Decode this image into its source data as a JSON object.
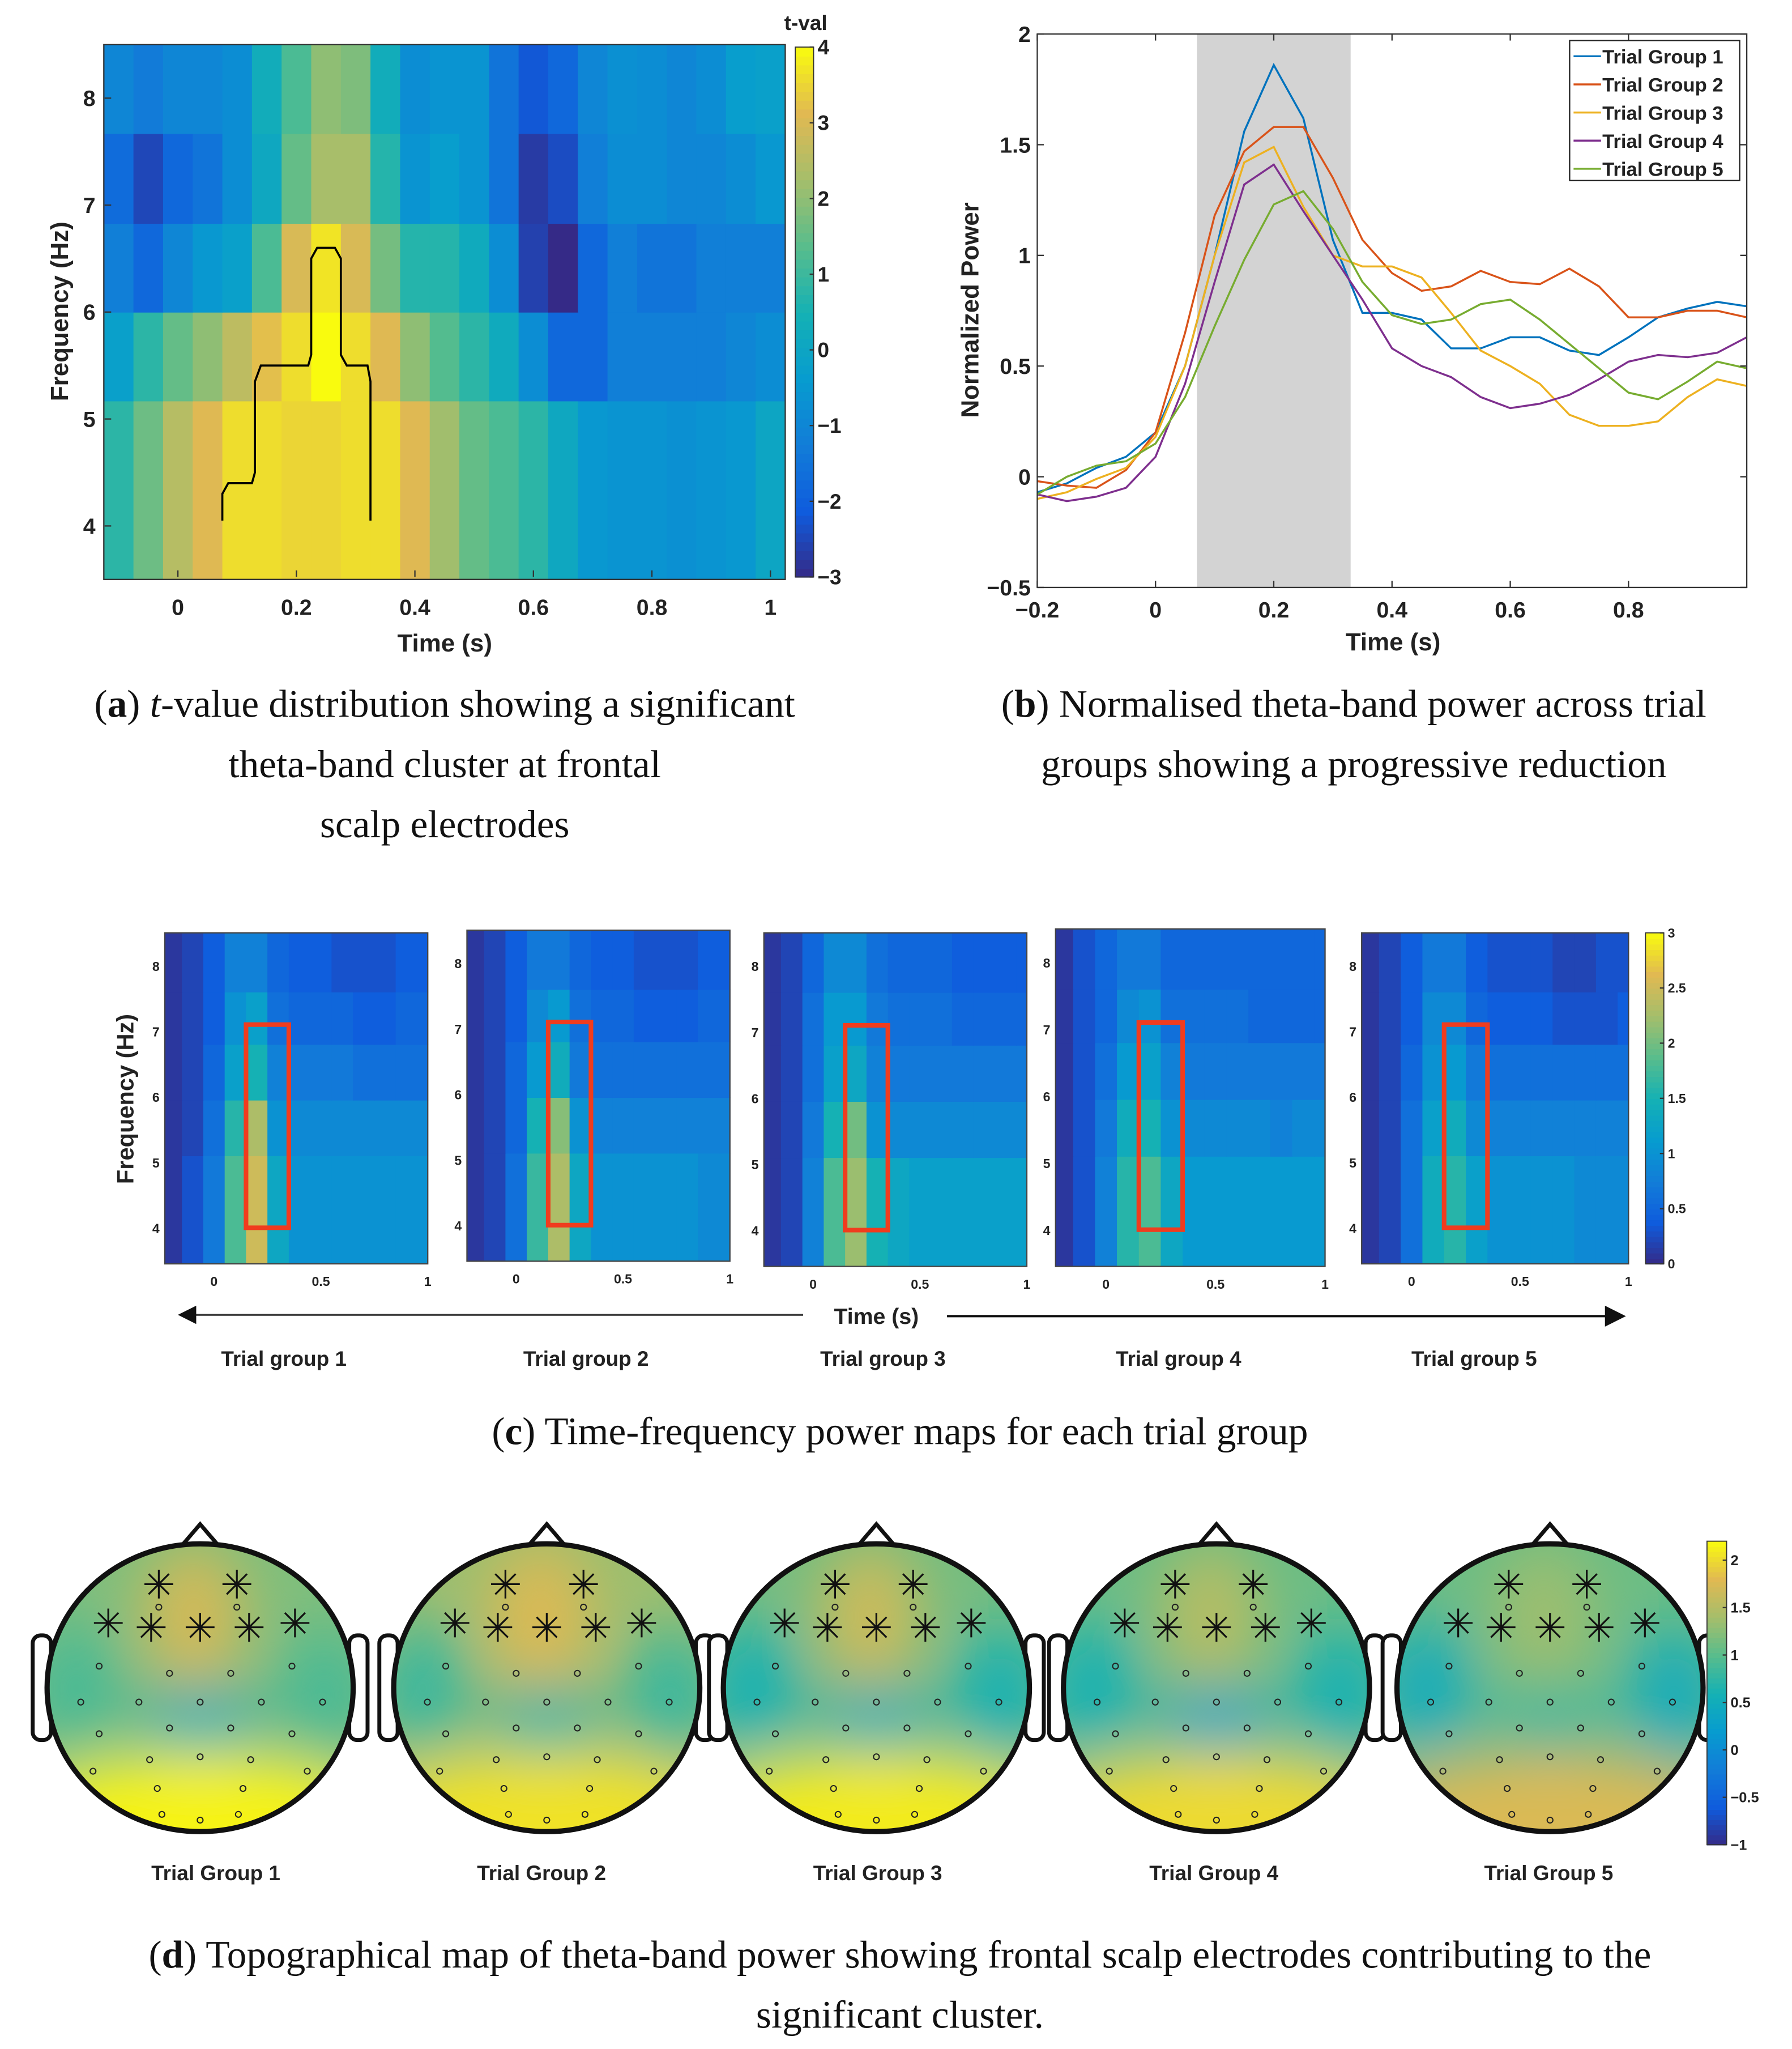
{
  "colors": {
    "series": [
      "#0072bd",
      "#d95319",
      "#edb120",
      "#7e2f8e",
      "#77ac30"
    ],
    "shade": "#d3d3d3",
    "roi_box": "#f03c1e",
    "contour": "#000000"
  },
  "chart_data": [
    {
      "id": "a",
      "type": "heatmap",
      "colorbar_title": "t-val",
      "xlabel": "Time (s)",
      "ylabel": "Frequency (Hz)",
      "xlim": [
        -0.125,
        1.025
      ],
      "ylim": [
        3.5,
        8.5
      ],
      "x_ticks": [
        0,
        0.2,
        0.4,
        0.6,
        0.8,
        1
      ],
      "x_tick_labels": [
        "0",
        "0.2",
        "0.4",
        "0.6",
        "0.8",
        "1"
      ],
      "y_ticks": [
        4,
        5,
        6,
        7,
        8
      ],
      "y_tick_labels": [
        "4",
        "5",
        "6",
        "7",
        "8"
      ],
      "clim": [
        -3,
        4
      ],
      "colorbar_ticks": [
        4,
        3,
        2,
        1,
        0,
        -1,
        -2,
        -3
      ],
      "colorbar_tick_labels": [
        "4",
        "3",
        "2",
        "1",
        "0",
        "−1",
        "−2",
        "−3"
      ],
      "time_start": -0.125,
      "time_step": 0.05,
      "row_edges_hz": [
        3.5,
        5.17,
        6.0,
        6.83,
        7.67,
        8.5
      ],
      "values_bottom_to_top": [
        [
          0.8,
          1.6,
          2.5,
          3.1,
          3.6,
          3.6,
          3.5,
          3.5,
          3.6,
          3.6,
          3.1,
          2.2,
          1.5,
          1.2,
          0.8,
          0.1,
          -0.5,
          -0.6,
          -0.6,
          -0.7,
          -0.6,
          -0.5,
          0.0
        ],
        [
          -0.2,
          0.8,
          1.5,
          2.0,
          2.6,
          3.2,
          3.6,
          4.0,
          3.6,
          3.1,
          2.0,
          1.3,
          0.8,
          0.2,
          -0.8,
          -1.8,
          -1.8,
          -1.2,
          -1.2,
          -1.2,
          -1.2,
          -1.0,
          -0.8
        ],
        [
          -1.2,
          -1.8,
          -1.0,
          -0.5,
          -0.2,
          1.2,
          3.0,
          3.7,
          3.0,
          1.7,
          0.7,
          0.7,
          0.2,
          -0.8,
          -2.6,
          -3.0,
          -1.8,
          -1.2,
          -1.5,
          -1.5,
          -1.2,
          -1.2,
          -1.2
        ],
        [
          -1.7,
          -2.5,
          -1.8,
          -1.5,
          -0.8,
          0.1,
          1.5,
          2.3,
          2.3,
          0.7,
          -0.6,
          -0.3,
          -0.6,
          -1.5,
          -2.7,
          -2.4,
          -1.2,
          -0.8,
          -0.8,
          -1.0,
          -1.0,
          -0.8,
          -0.5
        ],
        [
          -1.0,
          -1.3,
          -1.0,
          -1.0,
          -0.8,
          0.3,
          1.2,
          2.0,
          1.8,
          0.3,
          -0.8,
          -0.6,
          -0.6,
          -1.5,
          -2.2,
          -1.8,
          -1.0,
          -0.7,
          -0.8,
          -1.0,
          -0.8,
          -0.3,
          -0.2
        ]
      ],
      "cluster_contour": [
        [
          0.075,
          4.05
        ],
        [
          0.075,
          4.3
        ],
        [
          0.085,
          4.4
        ],
        [
          0.125,
          4.4
        ],
        [
          0.13,
          4.5
        ],
        [
          0.13,
          5.35
        ],
        [
          0.14,
          5.5
        ],
        [
          0.22,
          5.5
        ],
        [
          0.225,
          5.6
        ],
        [
          0.225,
          6.5
        ],
        [
          0.235,
          6.6
        ],
        [
          0.265,
          6.6
        ],
        [
          0.275,
          6.5
        ],
        [
          0.275,
          5.6
        ],
        [
          0.285,
          5.5
        ],
        [
          0.32,
          5.5
        ],
        [
          0.325,
          5.35
        ],
        [
          0.325,
          4.05
        ]
      ]
    },
    {
      "id": "b",
      "type": "line",
      "xlabel": "Time (s)",
      "ylabel": "Normalized Power",
      "xlim": [
        -0.2,
        1.0
      ],
      "ylim": [
        -0.5,
        2
      ],
      "x_ticks": [
        -0.2,
        0,
        0.2,
        0.4,
        0.6,
        0.8
      ],
      "x_tick_labels": [
        "−0.2",
        "0",
        "0.2",
        "0.4",
        "0.6",
        "0.8"
      ],
      "y_ticks": [
        -0.5,
        0,
        0.5,
        1,
        1.5,
        2
      ],
      "y_tick_labels": [
        "−0.5",
        "0",
        "0.5",
        "1",
        "1.5",
        "2"
      ],
      "shaded_window": [
        0.07,
        0.33
      ],
      "legend_position": "top-right",
      "x": [
        -0.2,
        -0.15,
        -0.1,
        -0.05,
        0,
        0.05,
        0.1,
        0.15,
        0.2,
        0.25,
        0.3,
        0.35,
        0.4,
        0.45,
        0.5,
        0.55,
        0.6,
        0.65,
        0.7,
        0.75,
        0.8,
        0.85,
        0.9,
        0.95,
        1.0
      ],
      "series": [
        {
          "name": "Trial Group 1",
          "values": [
            -0.07,
            -0.03,
            0.04,
            0.09,
            0.2,
            0.5,
            1.0,
            1.56,
            1.86,
            1.62,
            1.07,
            0.74,
            0.74,
            0.71,
            0.58,
            0.58,
            0.63,
            0.63,
            0.57,
            0.55,
            0.63,
            0.72,
            0.76,
            0.79,
            0.77
          ]
        },
        {
          "name": "Trial Group 2",
          "values": [
            -0.02,
            -0.04,
            -0.05,
            0.03,
            0.2,
            0.65,
            1.18,
            1.47,
            1.58,
            1.58,
            1.35,
            1.07,
            0.92,
            0.84,
            0.86,
            0.93,
            0.88,
            0.87,
            0.94,
            0.86,
            0.72,
            0.72,
            0.75,
            0.75,
            0.72
          ]
        },
        {
          "name": "Trial Group 3",
          "values": [
            -0.1,
            -0.07,
            -0.01,
            0.04,
            0.18,
            0.5,
            1.0,
            1.42,
            1.49,
            1.22,
            1.0,
            0.95,
            0.95,
            0.9,
            0.74,
            0.57,
            0.5,
            0.42,
            0.28,
            0.23,
            0.23,
            0.25,
            0.36,
            0.44,
            0.41
          ]
        },
        {
          "name": "Trial Group 4",
          "values": [
            -0.08,
            -0.11,
            -0.09,
            -0.05,
            0.09,
            0.42,
            0.88,
            1.32,
            1.41,
            1.2,
            1.0,
            0.8,
            0.58,
            0.5,
            0.45,
            0.36,
            0.31,
            0.33,
            0.37,
            0.44,
            0.52,
            0.55,
            0.54,
            0.56,
            0.63
          ]
        },
        {
          "name": "Trial Group 5",
          "values": [
            -0.08,
            0.0,
            0.05,
            0.07,
            0.15,
            0.36,
            0.68,
            0.98,
            1.23,
            1.29,
            1.12,
            0.88,
            0.73,
            0.69,
            0.71,
            0.78,
            0.8,
            0.71,
            0.6,
            0.49,
            0.38,
            0.35,
            0.43,
            0.52,
            0.49
          ]
        }
      ]
    },
    {
      "id": "c",
      "type": "heatmap",
      "ylabel": "Frequency (Hz)",
      "xlabel": "Time (s)",
      "xlim": [
        -0.23,
        1.0
      ],
      "ylim": [
        3.45,
        8.5
      ],
      "x_ticks": [
        0,
        0.5,
        1
      ],
      "x_tick_labels": [
        "0",
        "0.5",
        "1"
      ],
      "y_ticks": [
        4,
        5,
        6,
        7,
        8
      ],
      "y_tick_labels": [
        "4",
        "5",
        "6",
        "7",
        "8"
      ],
      "clim": [
        0,
        3
      ],
      "colorbar_ticks": [
        3,
        2.5,
        2,
        1.5,
        1,
        0.5,
        0
      ],
      "colorbar_tick_labels": [
        "3",
        "2.5",
        "2",
        "1.5",
        "1",
        "0.5",
        "0"
      ],
      "roi_box": {
        "time": [
          0.15,
          0.35
        ],
        "freq": [
          4.0,
          7.1
        ]
      },
      "time_centers": [
        -0.2,
        -0.1,
        0,
        0.1,
        0.2,
        0.3,
        0.4,
        0.5,
        0.6,
        0.7,
        0.8,
        0.9,
        1.0
      ],
      "row_edges_hz": [
        3.45,
        5.1,
        5.95,
        6.8,
        7.6,
        8.5
      ],
      "groups": [
        {
          "name": "Trial group 1",
          "values_bottom_to_top": [
            [
              0.1,
              0.3,
              0.7,
              1.8,
              2.5,
              1.3,
              1.0,
              1.0,
              1.0,
              1.0,
              1.0,
              1.0,
              1.0
            ],
            [
              0.1,
              0.2,
              0.6,
              1.6,
              2.3,
              1.0,
              0.9,
              0.9,
              0.9,
              0.9,
              0.9,
              0.9,
              0.9
            ],
            [
              0.1,
              0.2,
              0.5,
              1.2,
              1.5,
              0.8,
              0.7,
              0.7,
              0.7,
              0.6,
              0.6,
              0.6,
              0.6
            ],
            [
              0.1,
              0.2,
              0.4,
              1.0,
              1.2,
              0.6,
              0.5,
              0.5,
              0.5,
              0.4,
              0.4,
              0.5,
              0.5
            ],
            [
              0.1,
              0.2,
              0.4,
              0.8,
              0.8,
              0.5,
              0.4,
              0.4,
              0.3,
              0.3,
              0.3,
              0.4,
              0.4
            ]
          ]
        },
        {
          "name": "Trial group 2",
          "values_bottom_to_top": [
            [
              0.1,
              0.2,
              0.6,
              1.7,
              2.3,
              1.3,
              1.0,
              1.0,
              1.0,
              1.0,
              1.0,
              0.9,
              0.9
            ],
            [
              0.1,
              0.2,
              0.5,
              1.5,
              2.1,
              1.0,
              0.8,
              0.8,
              0.8,
              0.8,
              0.8,
              0.8,
              0.8
            ],
            [
              0.1,
              0.2,
              0.5,
              1.1,
              1.4,
              0.7,
              0.6,
              0.6,
              0.6,
              0.6,
              0.6,
              0.6,
              0.6
            ],
            [
              0.1,
              0.2,
              0.4,
              0.9,
              1.1,
              0.6,
              0.5,
              0.5,
              0.4,
              0.4,
              0.4,
              0.5,
              0.5
            ],
            [
              0.1,
              0.2,
              0.4,
              0.7,
              0.7,
              0.5,
              0.4,
              0.4,
              0.3,
              0.3,
              0.3,
              0.4,
              0.4
            ]
          ]
        },
        {
          "name": "Trial group 3",
          "values_bottom_to_top": [
            [
              0.1,
              0.2,
              0.8,
              1.8,
              2.2,
              1.5,
              1.3,
              1.2,
              1.2,
              1.2,
              1.2,
              1.2,
              1.2
            ],
            [
              0.1,
              0.2,
              0.7,
              1.5,
              2.0,
              1.0,
              0.9,
              0.9,
              0.9,
              0.9,
              0.9,
              0.9,
              0.9
            ],
            [
              0.1,
              0.2,
              0.6,
              1.2,
              1.3,
              0.8,
              0.7,
              0.7,
              0.7,
              0.7,
              0.7,
              0.7,
              0.7
            ],
            [
              0.1,
              0.2,
              0.6,
              1.1,
              1.1,
              0.7,
              0.6,
              0.6,
              0.6,
              0.5,
              0.5,
              0.5,
              0.5
            ],
            [
              0.1,
              0.2,
              0.5,
              0.9,
              0.9,
              0.6,
              0.5,
              0.5,
              0.5,
              0.4,
              0.4,
              0.4,
              0.4
            ]
          ]
        },
        {
          "name": "Trial group 4",
          "values_bottom_to_top": [
            [
              0.1,
              0.3,
              0.8,
              1.6,
              1.8,
              1.3,
              1.1,
              1.1,
              1.1,
              1.1,
              1.1,
              1.1,
              1.1
            ],
            [
              0.1,
              0.3,
              0.7,
              1.4,
              1.5,
              1.0,
              0.9,
              0.9,
              0.9,
              0.9,
              0.8,
              0.9,
              0.9
            ],
            [
              0.1,
              0.3,
              0.6,
              1.1,
              1.2,
              0.8,
              0.7,
              0.7,
              0.7,
              0.7,
              0.7,
              0.7,
              0.7
            ],
            [
              0.1,
              0.3,
              0.5,
              0.9,
              1.0,
              0.6,
              0.6,
              0.6,
              0.6,
              0.5,
              0.5,
              0.5,
              0.5
            ],
            [
              0.1,
              0.3,
              0.5,
              0.7,
              0.7,
              0.5,
              0.5,
              0.5,
              0.5,
              0.5,
              0.5,
              0.5,
              0.5
            ]
          ]
        },
        {
          "name": "Trial group 5",
          "values_bottom_to_top": [
            [
              0.1,
              0.2,
              0.6,
              1.4,
              1.6,
              1.2,
              1.0,
              1.0,
              1.0,
              1.0,
              0.9,
              0.9,
              0.9
            ],
            [
              0.1,
              0.2,
              0.6,
              1.2,
              1.4,
              0.9,
              0.8,
              0.8,
              0.8,
              0.8,
              0.8,
              0.8,
              0.8
            ],
            [
              0.1,
              0.2,
              0.5,
              1.0,
              1.1,
              0.7,
              0.6,
              0.6,
              0.6,
              0.6,
              0.6,
              0.6,
              0.6
            ],
            [
              0.1,
              0.2,
              0.4,
              0.9,
              0.9,
              0.5,
              0.4,
              0.4,
              0.4,
              0.3,
              0.3,
              0.3,
              0.4
            ],
            [
              0.1,
              0.2,
              0.4,
              0.7,
              0.7,
              0.4,
              0.3,
              0.3,
              0.3,
              0.2,
              0.2,
              0.3,
              0.3
            ]
          ]
        }
      ]
    },
    {
      "id": "d",
      "type": "heatmap",
      "subtype": "topographic",
      "clim": [
        -1,
        2.2
      ],
      "colorbar_ticks": [
        2,
        1.5,
        1,
        0.5,
        0,
        -0.5,
        -1
      ],
      "colorbar_tick_labels": [
        "2",
        "1.5",
        "1",
        "0.5",
        "0",
        "−0.5",
        "−1"
      ],
      "significant_electrodes": 7,
      "total_electrodes": 32,
      "groups": [
        {
          "name": "Trial Group 1",
          "regional_power": {
            "base": 1.2,
            "frontal": 1.7,
            "central": 0.55,
            "posterior": 2.15,
            "lateral": 0.9
          }
        },
        {
          "name": "Trial Group 2",
          "regional_power": {
            "base": 1.35,
            "frontal": 1.75,
            "central": 0.7,
            "posterior": 2.05,
            "lateral": 0.8
          }
        },
        {
          "name": "Trial Group 3",
          "regional_power": {
            "base": 1.15,
            "frontal": 1.65,
            "central": 0.55,
            "posterior": 2.1,
            "lateral": 0.6
          }
        },
        {
          "name": "Trial Group 4",
          "regional_power": {
            "base": 1.1,
            "frontal": 1.5,
            "central": 0.4,
            "posterior": 2.0,
            "lateral": 0.6
          }
        },
        {
          "name": "Trial Group 5",
          "regional_power": {
            "base": 1.1,
            "frontal": 1.35,
            "central": 0.8,
            "posterior": 1.75,
            "lateral": 0.5
          }
        }
      ]
    }
  ],
  "captions": {
    "a": {
      "label": "a",
      "italic": "t",
      "line1": "-value distribution showing a significant",
      "line2": "theta-band cluster at frontal",
      "line3": "scalp electrodes"
    },
    "b": {
      "label": "b",
      "line1": " Normalised theta-band power across trial",
      "line2": "groups showing a progressive reduction"
    },
    "c": {
      "label": "c",
      "line1": " Time-frequency power maps for each trial group"
    },
    "d": {
      "label": "d",
      "line1": " Topographical map of theta-band power showing frontal scalp electrodes contributing to the",
      "line2": "significant cluster."
    }
  }
}
